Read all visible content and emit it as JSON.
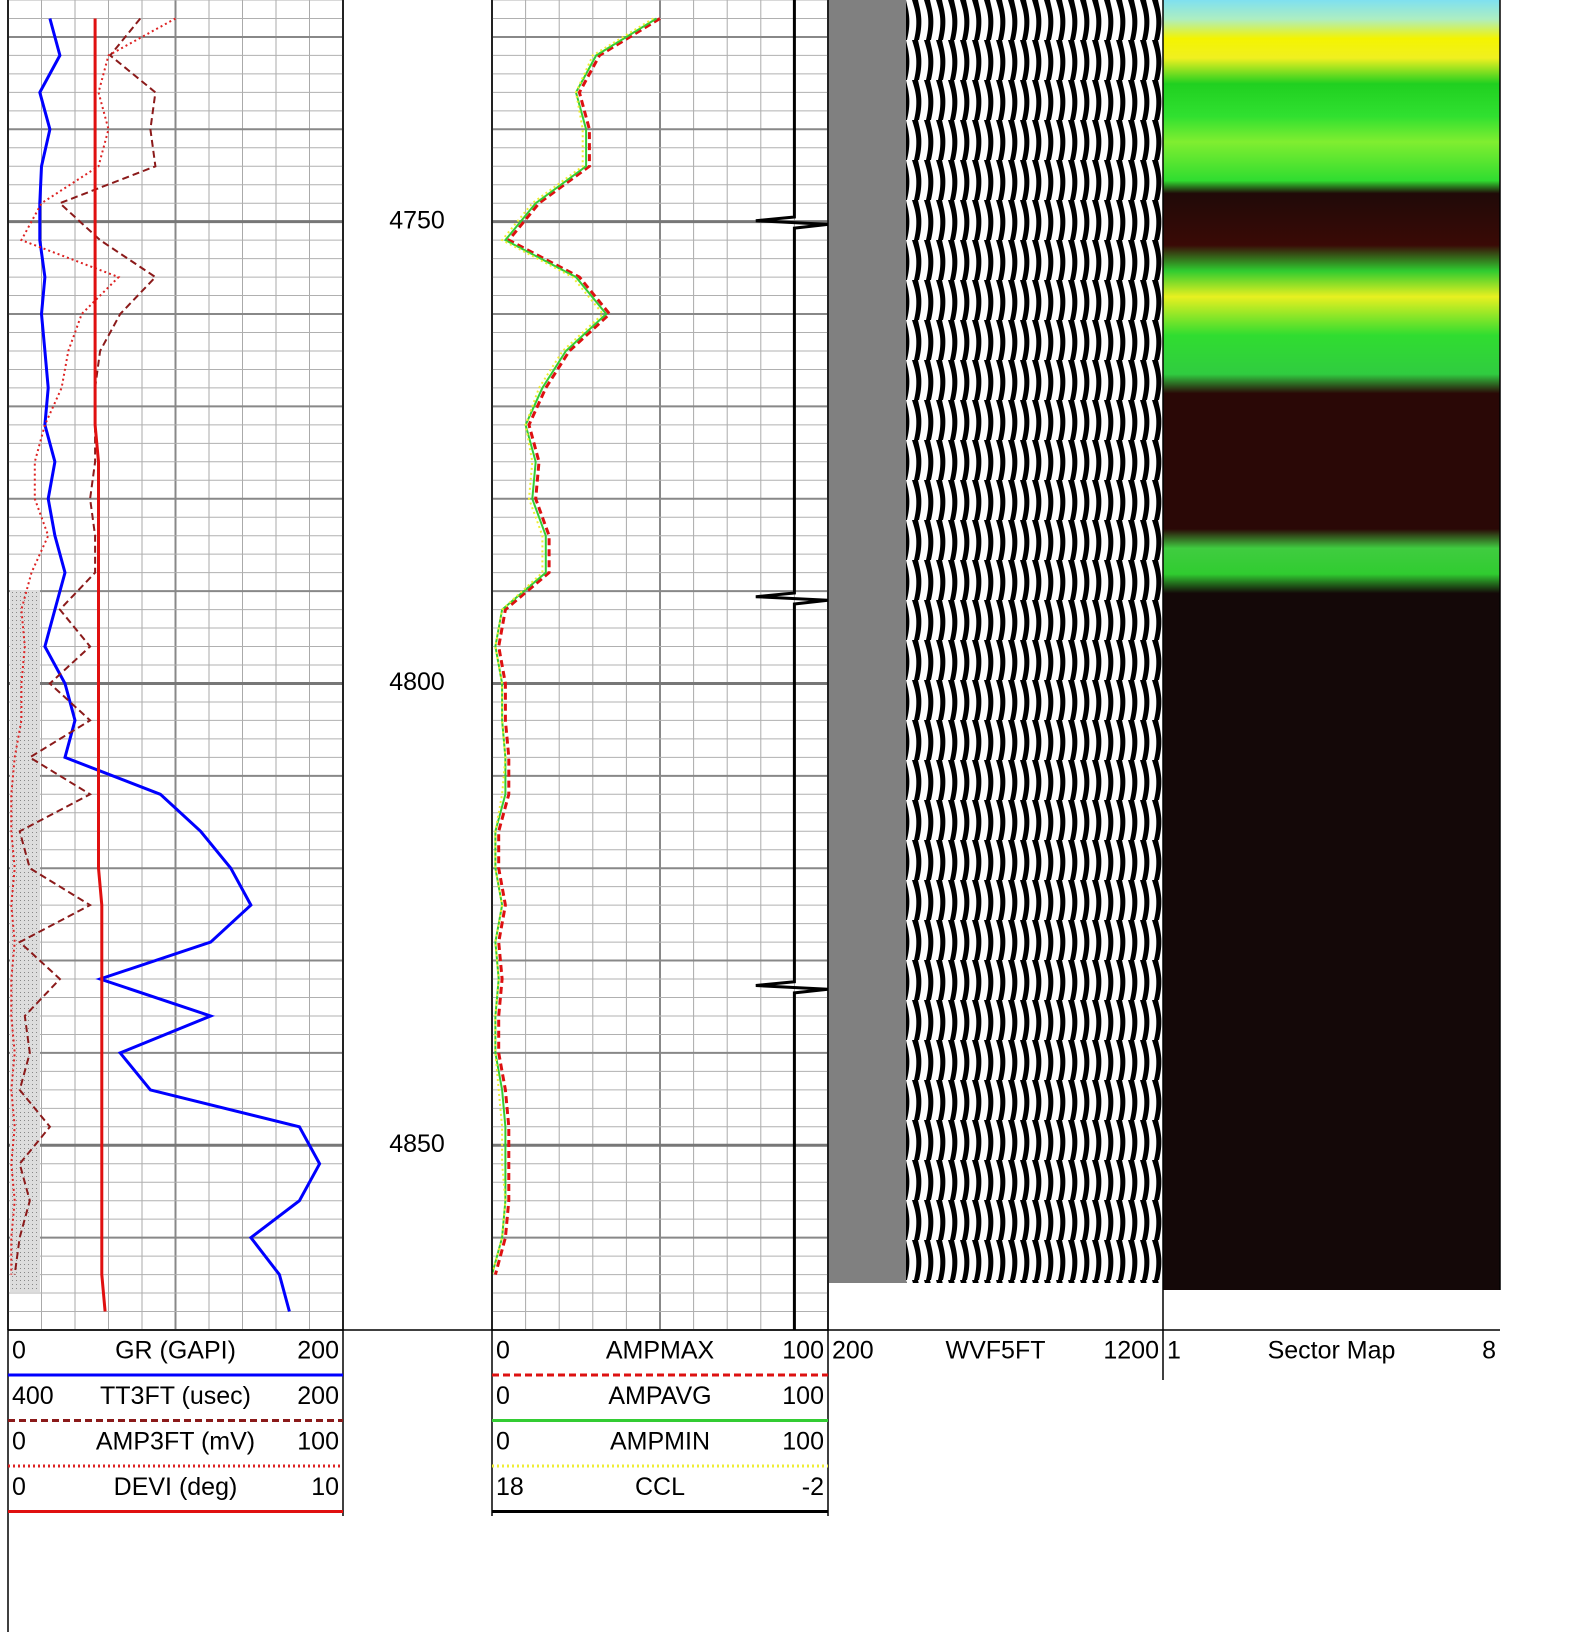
{
  "chart_data": [
    {
      "type": "depth",
      "ylim": [
        4726,
        4870
      ],
      "yticks": [
        4750,
        4800,
        4850
      ]
    },
    {
      "type": "line",
      "x": [
        4728,
        4732,
        4736,
        4740,
        4744,
        4748,
        4752,
        4756,
        4760,
        4764,
        4768,
        4772,
        4776,
        4780,
        4784,
        4788,
        4792,
        4796,
        4800,
        4804,
        4808,
        4812,
        4816,
        4820,
        4824,
        4828,
        4832,
        4836,
        4840,
        4844,
        4848,
        4852,
        4856,
        4860,
        4864,
        4868
      ],
      "series": [
        {
          "name": "GR (GAPI)",
          "color": "#0000ff",
          "style": "solid",
          "xlim": [
            0,
            200
          ],
          "values": [
            25,
            31,
            19,
            25,
            20,
            19,
            19,
            22,
            20,
            22,
            24,
            22,
            28,
            24,
            28,
            34,
            28,
            22,
            34,
            40,
            34,
            91,
            115,
            133,
            145,
            121,
            55,
            121,
            67,
            85,
            174,
            186,
            174,
            145,
            162,
            168
          ]
        },
        {
          "name": "TT3FT (usec)",
          "color": "#8b1a1a",
          "style": "dashed",
          "xlim": [
            400,
            200
          ],
          "values": [
            321,
            339,
            312,
            315,
            312,
            369,
            345,
            312,
            333,
            345,
            348,
            348,
            348,
            351,
            348,
            348,
            369,
            351,
            375,
            351,
            387,
            351,
            393,
            387,
            351,
            393,
            369,
            390,
            387,
            393,
            375,
            393,
            387,
            393,
            396,
            null
          ]
        },
        {
          "name": "AMP3FT (mV)",
          "color": "#dd2222",
          "style": "dotted",
          "xlim": [
            0,
            100
          ],
          "values": [
            50,
            30,
            27,
            30,
            27,
            10,
            4,
            33,
            22,
            18,
            16,
            11,
            8,
            8,
            12,
            7,
            4,
            5,
            4,
            4,
            2,
            1,
            1,
            2,
            1,
            2,
            1,
            1,
            2,
            1,
            2,
            1,
            2,
            1,
            1,
            null
          ]
        },
        {
          "name": "DEVI (deg)",
          "color": "#e01010",
          "style": "solid",
          "xlim": [
            0,
            10
          ],
          "values": [
            2.6,
            2.6,
            2.6,
            2.6,
            2.6,
            2.6,
            2.6,
            2.6,
            2.6,
            2.6,
            2.6,
            2.6,
            2.7,
            2.7,
            2.7,
            2.7,
            2.7,
            2.7,
            2.7,
            2.7,
            2.7,
            2.7,
            2.7,
            2.7,
            2.8,
            2.8,
            2.8,
            2.8,
            2.8,
            2.8,
            2.8,
            2.8,
            2.8,
            2.8,
            2.8,
            2.9
          ]
        }
      ]
    },
    {
      "type": "line",
      "x": [
        4728,
        4732,
        4736,
        4740,
        4744,
        4748,
        4752,
        4756,
        4760,
        4764,
        4768,
        4772,
        4776,
        4780,
        4784,
        4788,
        4792,
        4796,
        4800,
        4804,
        4808,
        4812,
        4816,
        4820,
        4824,
        4828,
        4832,
        4836,
        4840,
        4844,
        4848,
        4852,
        4856,
        4860,
        4864,
        4868
      ],
      "series": [
        {
          "name": "AMPMAX",
          "color": "#dd1111",
          "style": "dashed",
          "xlim": [
            0,
            100
          ],
          "values": [
            50,
            32,
            26,
            29,
            29,
            14,
            5,
            26,
            35,
            23,
            16,
            11,
            14,
            13,
            17,
            17,
            4,
            2,
            4,
            4,
            5,
            5,
            2,
            2,
            4,
            2,
            3,
            2,
            2,
            4,
            5,
            5,
            5,
            4,
            1,
            null
          ]
        },
        {
          "name": "AMPAVG",
          "color": "#33cc33",
          "style": "solid",
          "xlim": [
            0,
            100
          ],
          "values": [
            49,
            31,
            25,
            28,
            28,
            13,
            4,
            25,
            34,
            22,
            15,
            10,
            13,
            12,
            16,
            16,
            3,
            1,
            3,
            3,
            4,
            4,
            1,
            1,
            3,
            1,
            2,
            1,
            1,
            3,
            4,
            4,
            4,
            3,
            0,
            null
          ]
        },
        {
          "name": "AMPMIN",
          "color": "#eeee33",
          "style": "dotted",
          "xlim": [
            0,
            100
          ],
          "values": [
            48,
            30,
            25,
            27,
            27,
            12,
            3,
            24,
            33,
            21,
            14,
            10,
            12,
            11,
            15,
            15,
            3,
            1,
            3,
            3,
            4,
            3,
            1,
            1,
            3,
            1,
            2,
            1,
            1,
            2,
            3,
            3,
            4,
            3,
            0,
            null
          ]
        },
        {
          "name": "CCL",
          "color": "#000000",
          "style": "solid",
          "xlim": [
            18,
            -2
          ],
          "x": [
            4726,
            4749.5,
            4749.9,
            4750.3,
            4750.7,
            4790.2,
            4790.6,
            4791,
            4791.4,
            4832.3,
            4832.7,
            4833.1,
            4833.5,
            4870
          ],
          "values": [
            0,
            0,
            2.3,
            -2,
            0,
            0,
            2.3,
            -2,
            0,
            0,
            2.3,
            -2,
            0,
            0
          ]
        }
      ]
    },
    {
      "type": "image",
      "name": "WVF5FT",
      "xlim": [
        200,
        1200
      ]
    },
    {
      "type": "image",
      "name": "Sector Map",
      "xlim": [
        1,
        8
      ]
    }
  ]
}
